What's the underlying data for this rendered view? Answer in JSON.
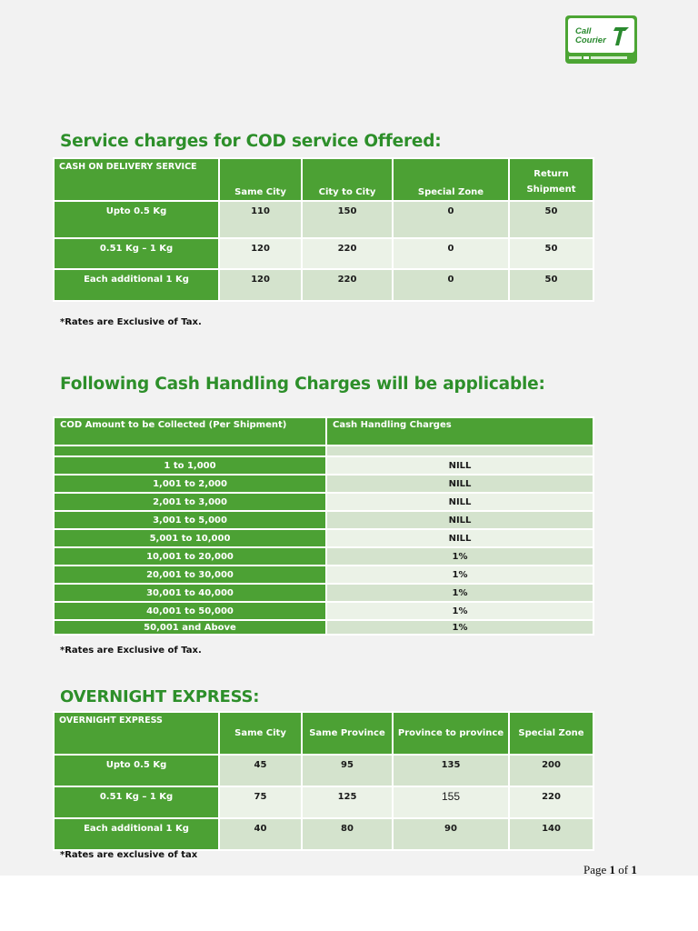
{
  "logo": {
    "line1": "Call",
    "line2": "Courier",
    "mark": "®"
  },
  "cod_section": {
    "title": "Service charges for COD service Offered:",
    "corner_label": "CASH ON DELIVERY SERVICE",
    "columns": [
      "Same City",
      "City to City",
      "Special Zone",
      "Return Shipment"
    ],
    "rows": [
      {
        "label": "Upto 0.5 Kg",
        "values": [
          "110",
          "150",
          "0",
          "50"
        ]
      },
      {
        "label": "0.51 Kg – 1 Kg",
        "values": [
          "120",
          "220",
          "0",
          "50"
        ]
      },
      {
        "label": "Each additional 1 Kg",
        "values": [
          "120",
          "220",
          "0",
          "50"
        ]
      }
    ],
    "note": "*Rates are Exclusive of Tax."
  },
  "cash_section": {
    "title": "Following Cash Handling Charges will be applicable:",
    "col1": "COD Amount to be Collected (Per Shipment)",
    "col2": "Cash Handling Charges",
    "rows": [
      {
        "range": "1 to 1,000",
        "charge": "NILL"
      },
      {
        "range": "1,001 to 2,000",
        "charge": "NILL"
      },
      {
        "range": "2,001 to 3,000",
        "charge": "NILL"
      },
      {
        "range": "3,001 to 5,000",
        "charge": "NILL"
      },
      {
        "range": "5,001 to 10,000",
        "charge": "NILL"
      },
      {
        "range": "10,001 to 20,000",
        "charge": "1%"
      },
      {
        "range": "20,001 to 30,000",
        "charge": "1%"
      },
      {
        "range": "30,001 to 40,000",
        "charge": "1%"
      },
      {
        "range": "40,001 to 50,000",
        "charge": "1%"
      },
      {
        "range": "50,001 and Above",
        "charge": "1%"
      }
    ],
    "note": "*Rates are Exclusive of Tax."
  },
  "overnight_section": {
    "title": "OVERNIGHT EXPRESS:",
    "corner_label": "OVERNIGHT EXPRESS",
    "columns": [
      "Same City",
      "Same Province",
      "Province to province",
      "Special Zone"
    ],
    "rows": [
      {
        "label": "Upto 0.5 Kg",
        "values": [
          "45",
          "95",
          "135",
          "200"
        ]
      },
      {
        "label": "0.51 Kg – 1 Kg",
        "values": [
          "75",
          "125",
          "155",
          "220"
        ]
      },
      {
        "label": "Each additional 1 Kg",
        "values": [
          "40",
          "80",
          "90",
          "140"
        ]
      }
    ],
    "note": "*Rates are exclusive of tax"
  },
  "footer": {
    "page_word": "Page",
    "page_num": "1",
    "of_word": "of",
    "page_total": "1"
  }
}
